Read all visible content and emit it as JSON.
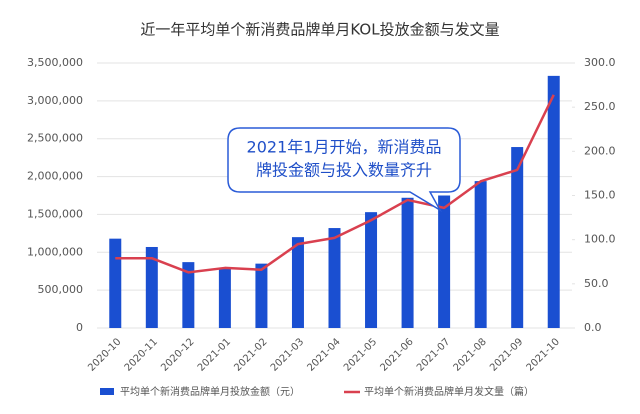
{
  "chart_data": {
    "type": "bar-line",
    "title": "近一年平均单个新消费品牌单月KOL投放金额与发文量",
    "categories": [
      "2020-10",
      "2020-11",
      "2020-12",
      "2021-01",
      "2021-02",
      "2021-03",
      "2021-04",
      "2021-05",
      "2021-06",
      "2021-07",
      "2021-08",
      "2021-09",
      "2021-10"
    ],
    "series": [
      {
        "name": "平均单个新消费品牌单月投放金额（元）",
        "type": "bar",
        "color": "#1a4fd1",
        "values": [
          1180000,
          1070000,
          870000,
          790000,
          850000,
          1200000,
          1320000,
          1530000,
          1720000,
          1750000,
          1940000,
          2390000,
          3330000
        ]
      },
      {
        "name": "平均单个新消费品牌单月发文量（篇）",
        "type": "line",
        "axis": "y2",
        "color": "#d9404f",
        "values": [
          79,
          79,
          63,
          68,
          66,
          95,
          102,
          122,
          145,
          136,
          166,
          179,
          264
        ]
      }
    ],
    "ylim": [
      0,
      3500000
    ],
    "yticks": [
      0,
      {
        "value": 500000,
        "label": "500,000"
      },
      {
        "value": 1000000,
        "label": "1,000,000"
      },
      {
        "value": 1500000,
        "label": "1,500,000"
      },
      {
        "value": 2000000,
        "label": "2,000,000"
      },
      {
        "value": 2500000,
        "label": "2,500,000"
      },
      {
        "value": 3000000,
        "label": "3,000,000"
      },
      {
        "value": 3500000,
        "label": "3,500,000"
      }
    ],
    "y2lim": [
      0,
      300
    ],
    "y2ticks": [
      {
        "value": 0,
        "label": "0.0"
      },
      {
        "value": 50,
        "label": "50.0"
      },
      {
        "value": 100,
        "label": "100.0"
      },
      {
        "value": 150,
        "label": "150.0"
      },
      {
        "value": 200,
        "label": "200.0"
      },
      {
        "value": 250,
        "label": "250.0"
      },
      {
        "value": 300,
        "label": "300.0"
      }
    ],
    "grid": true,
    "legend": "bottom",
    "annotation": [
      "2021年1月开始，新消费品",
      "牌投金额与投入数量齐升"
    ]
  }
}
